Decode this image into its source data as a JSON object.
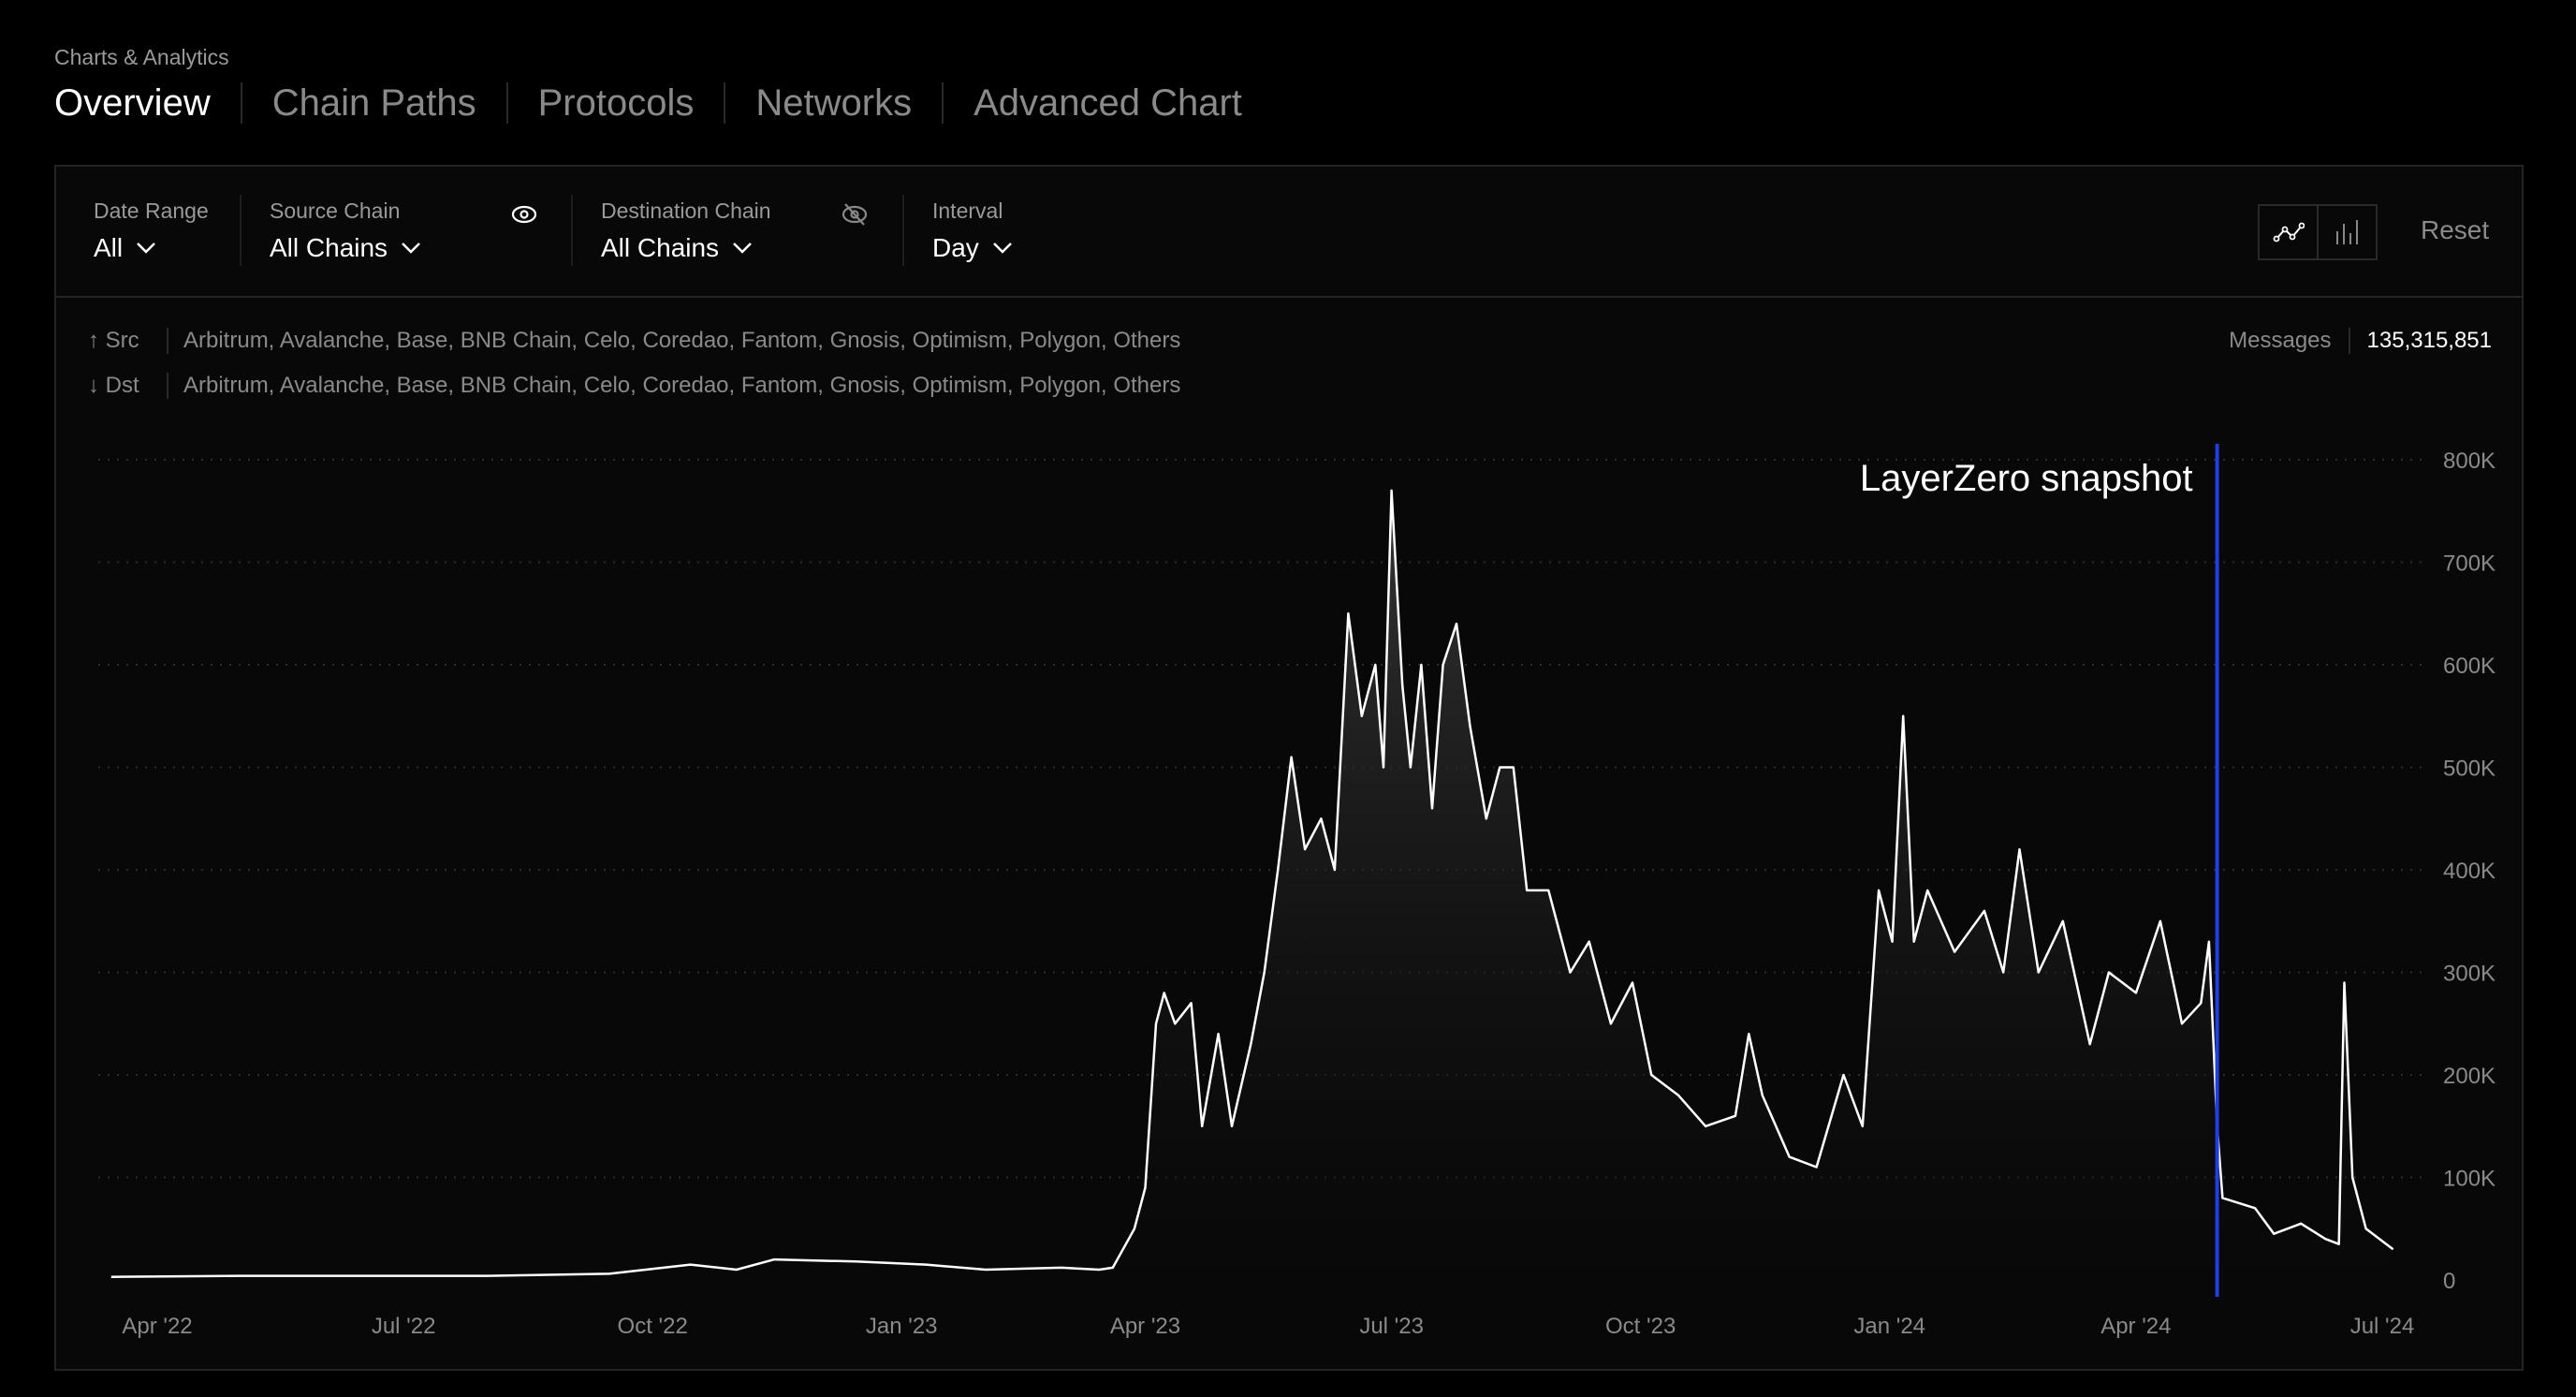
{
  "breadcrumb": "Charts & Analytics",
  "tabs": [
    {
      "label": "Overview",
      "active": true
    },
    {
      "label": "Chain Paths"
    },
    {
      "label": "Protocols"
    },
    {
      "label": "Networks"
    },
    {
      "label": "Advanced Chart"
    }
  ],
  "filters": {
    "date_range": {
      "label": "Date Range",
      "value": "All"
    },
    "source_chain": {
      "label": "Source Chain",
      "value": "All Chains",
      "icon": "eye-icon"
    },
    "destination_chain": {
      "label": "Destination Chain",
      "value": "All Chains",
      "icon": "eye-off-icon"
    },
    "interval": {
      "label": "Interval",
      "value": "Day"
    }
  },
  "chart_toggle": {
    "active": "line",
    "options": [
      "line-chart-icon",
      "bar-chart-icon"
    ]
  },
  "reset_label": "Reset",
  "src": {
    "label": "Src",
    "chains": "Arbitrum, Avalanche, Base, BNB Chain, Celo, Coredao, Fantom, Gnosis, Optimism, Polygon, Others"
  },
  "dst": {
    "label": "Dst",
    "chains": "Arbitrum, Avalanche, Base, BNB Chain, Celo, Coredao, Fantom, Gnosis, Optimism, Polygon, Others"
  },
  "messages": {
    "label": "Messages",
    "value": "135,315,851"
  },
  "colors": {
    "line": "#ffffff",
    "annotation": "#1f3fe0",
    "background": "#080808"
  },
  "chart_data": {
    "type": "area",
    "x_ticks": [
      "Apr '22",
      "Jul '22",
      "Oct '22",
      "Jan '23",
      "Apr '23",
      "Jul '23",
      "Oct '23",
      "Jan '24",
      "Apr '24",
      "Jul '24"
    ],
    "x_tick_dates": [
      "2022-04-01",
      "2022-07-01",
      "2022-10-01",
      "2023-01-01",
      "2023-04-01",
      "2023-07-01",
      "2023-10-01",
      "2024-01-01",
      "2024-04-01",
      "2024-07-01"
    ],
    "y_ticks": [
      "0",
      "100K",
      "200K",
      "300K",
      "400K",
      "500K",
      "600K",
      "700K",
      "800K"
    ],
    "ylim": [
      0,
      800000
    ],
    "grid": "horizontal dotted",
    "annotation": {
      "label": "LayerZero snapshot",
      "date": "2024-05-01"
    },
    "points": [
      [
        "2022-03-15",
        3000
      ],
      [
        "2022-05-01",
        4000
      ],
      [
        "2022-06-15",
        4000
      ],
      [
        "2022-08-01",
        4000
      ],
      [
        "2022-09-15",
        6000
      ],
      [
        "2022-10-15",
        15000
      ],
      [
        "2022-11-01",
        10000
      ],
      [
        "2022-11-15",
        20000
      ],
      [
        "2022-12-15",
        18000
      ],
      [
        "2023-01-10",
        15000
      ],
      [
        "2023-02-01",
        10000
      ],
      [
        "2023-03-01",
        12000
      ],
      [
        "2023-03-15",
        10000
      ],
      [
        "2023-03-20",
        12000
      ],
      [
        "2023-03-28",
        50000
      ],
      [
        "2023-04-01",
        90000
      ],
      [
        "2023-04-05",
        250000
      ],
      [
        "2023-04-08",
        280000
      ],
      [
        "2023-04-12",
        250000
      ],
      [
        "2023-04-18",
        270000
      ],
      [
        "2023-04-22",
        150000
      ],
      [
        "2023-04-28",
        240000
      ],
      [
        "2023-05-03",
        150000
      ],
      [
        "2023-05-10",
        230000
      ],
      [
        "2023-05-15",
        300000
      ],
      [
        "2023-05-20",
        400000
      ],
      [
        "2023-05-25",
        510000
      ],
      [
        "2023-05-30",
        420000
      ],
      [
        "2023-06-05",
        450000
      ],
      [
        "2023-06-10",
        400000
      ],
      [
        "2023-06-15",
        650000
      ],
      [
        "2023-06-20",
        550000
      ],
      [
        "2023-06-25",
        600000
      ],
      [
        "2023-06-28",
        500000
      ],
      [
        "2023-07-01",
        770000
      ],
      [
        "2023-07-05",
        580000
      ],
      [
        "2023-07-08",
        500000
      ],
      [
        "2023-07-12",
        600000
      ],
      [
        "2023-07-16",
        460000
      ],
      [
        "2023-07-20",
        600000
      ],
      [
        "2023-07-25",
        640000
      ],
      [
        "2023-07-30",
        540000
      ],
      [
        "2023-08-05",
        450000
      ],
      [
        "2023-08-10",
        500000
      ],
      [
        "2023-08-15",
        500000
      ],
      [
        "2023-08-20",
        380000
      ],
      [
        "2023-08-28",
        380000
      ],
      [
        "2023-09-05",
        300000
      ],
      [
        "2023-09-12",
        330000
      ],
      [
        "2023-09-20",
        250000
      ],
      [
        "2023-09-28",
        290000
      ],
      [
        "2023-10-05",
        200000
      ],
      [
        "2023-10-15",
        180000
      ],
      [
        "2023-10-25",
        150000
      ],
      [
        "2023-11-05",
        160000
      ],
      [
        "2023-11-10",
        240000
      ],
      [
        "2023-11-15",
        180000
      ],
      [
        "2023-11-25",
        120000
      ],
      [
        "2023-12-05",
        110000
      ],
      [
        "2023-12-15",
        200000
      ],
      [
        "2023-12-22",
        150000
      ],
      [
        "2023-12-28",
        380000
      ],
      [
        "2024-01-02",
        330000
      ],
      [
        "2024-01-06",
        550000
      ],
      [
        "2024-01-10",
        330000
      ],
      [
        "2024-01-15",
        380000
      ],
      [
        "2024-01-25",
        320000
      ],
      [
        "2024-02-05",
        360000
      ],
      [
        "2024-02-12",
        300000
      ],
      [
        "2024-02-18",
        420000
      ],
      [
        "2024-02-25",
        300000
      ],
      [
        "2024-03-05",
        350000
      ],
      [
        "2024-03-15",
        230000
      ],
      [
        "2024-03-22",
        300000
      ],
      [
        "2024-04-01",
        280000
      ],
      [
        "2024-04-10",
        350000
      ],
      [
        "2024-04-18",
        250000
      ],
      [
        "2024-04-25",
        270000
      ],
      [
        "2024-04-28",
        330000
      ],
      [
        "2024-05-01",
        150000
      ],
      [
        "2024-05-03",
        80000
      ],
      [
        "2024-05-15",
        70000
      ],
      [
        "2024-05-22",
        45000
      ],
      [
        "2024-06-01",
        55000
      ],
      [
        "2024-06-10",
        40000
      ],
      [
        "2024-06-15",
        35000
      ],
      [
        "2024-06-17",
        290000
      ],
      [
        "2024-06-20",
        100000
      ],
      [
        "2024-06-25",
        50000
      ],
      [
        "2024-07-05",
        30000
      ]
    ]
  }
}
